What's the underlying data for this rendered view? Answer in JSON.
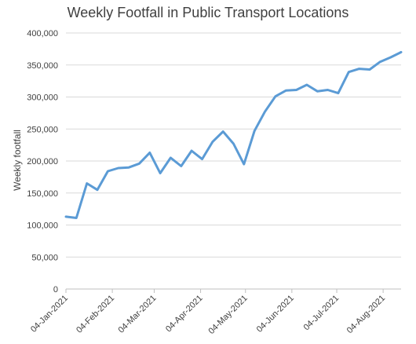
{
  "chart_data": {
    "type": "line",
    "title": "Weekly Footfall in Public Transport Locations",
    "xlabel": "",
    "ylabel": "Weekly footfall",
    "ylim": [
      0,
      400000
    ],
    "y_ticks": [
      0,
      50000,
      100000,
      150000,
      200000,
      250000,
      300000,
      350000,
      400000
    ],
    "y_tick_labels": [
      "0",
      "50,000",
      "100,000",
      "150,000",
      "200,000",
      "250,000",
      "300,000",
      "350,000",
      "400,000"
    ],
    "x_ticks": [
      "04-Jan-2021",
      "04-Feb-2021",
      "04-Mar-2021",
      "04-Apr-2021",
      "04-May-2021",
      "04-Jun-2021",
      "04-Jul-2021",
      "04-Aug-2021"
    ],
    "x_range": [
      "04-Jan-2021",
      "16-Aug-2021"
    ],
    "grid": true,
    "legend": "none",
    "color": "#5b9bd5",
    "series": [
      {
        "x": [
          "04-Jan-2021",
          "11-Jan-2021",
          "18-Jan-2021",
          "25-Jan-2021",
          "01-Feb-2021",
          "08-Feb-2021",
          "15-Feb-2021",
          "22-Feb-2021",
          "01-Mar-2021",
          "08-Mar-2021",
          "15-Mar-2021",
          "22-Mar-2021",
          "29-Mar-2021",
          "05-Apr-2021",
          "12-Apr-2021",
          "19-Apr-2021",
          "26-Apr-2021",
          "03-May-2021",
          "10-May-2021",
          "17-May-2021",
          "24-May-2021",
          "31-May-2021",
          "07-Jun-2021",
          "14-Jun-2021",
          "21-Jun-2021",
          "28-Jun-2021",
          "05-Jul-2021",
          "12-Jul-2021",
          "19-Jul-2021",
          "26-Jul-2021",
          "02-Aug-2021",
          "09-Aug-2021",
          "16-Aug-2021"
        ],
        "values": [
          113000,
          111000,
          165000,
          155000,
          184000,
          189000,
          190000,
          196000,
          213000,
          181000,
          205000,
          192000,
          216000,
          203000,
          230000,
          246000,
          227000,
          195000,
          247000,
          277000,
          301000,
          310000,
          311000,
          319000,
          309000,
          311000,
          306000,
          339000,
          344000,
          343000,
          355000,
          362000,
          370000
        ]
      }
    ]
  }
}
